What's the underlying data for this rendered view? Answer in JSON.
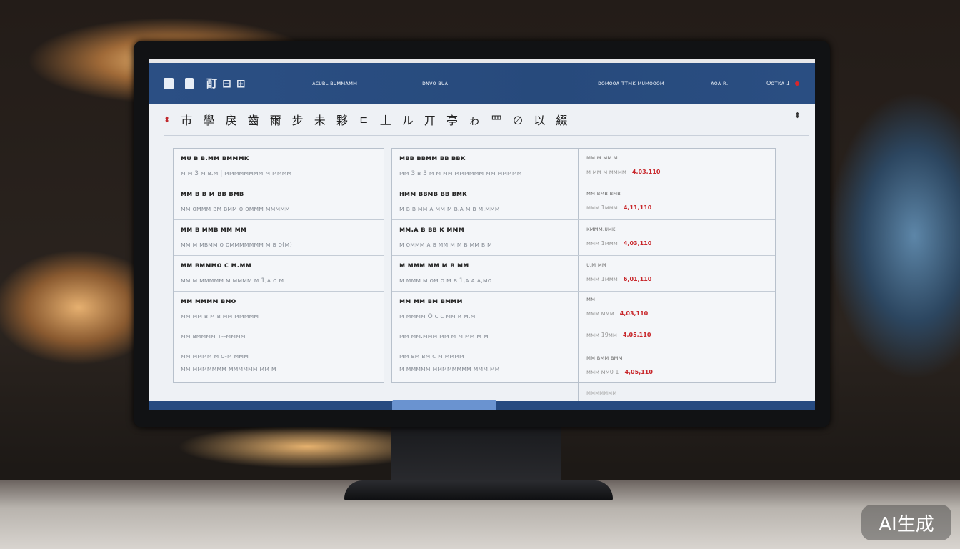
{
  "header": {
    "logo": "酊 ⊟ ⊞",
    "nav": [
      "ᴀᴄᴜʙʟ ʙᴜᴍᴍᴀᴍᴍ",
      "ᴅɴᴠᴏ ʙᴜᴀ",
      "ᴅᴏᴍᴏᴏᴀ ᴛᴛᴍᴋ ᴍᴜᴍᴏᴏᴏᴍ",
      "ᴀᴏᴀ ʀ.",
      "Oᴏᴛᴋᴀ 1"
    ],
    "accent": "#2b4f84"
  },
  "title": "巿 學 戾 齒 爾 步 未 夥 ㄷ 丄 ル 丌 亭 ゎ 罒 ∅ 以 綴",
  "left_rows": [
    {
      "title": "ᴍᴜ ʙ ʙ.ᴍᴍ ʙᴍᴍᴍᴋ",
      "detail": "ᴍ ᴍ 3 ᴍ ʙ.ᴍ | ᴍᴍᴍᴍᴍᴍᴍᴍ ᴍ ᴍᴍᴍᴍ"
    },
    {
      "title": "ᴍᴍ ʙ ʙ ᴍ ʙʙ ʙᴍʙ",
      "detail": "ᴍᴍ ᴏᴍᴍᴍ ʙᴍ ʙᴍᴍ ᴏ ᴏᴍᴍᴍ ᴍᴍᴍᴍᴍ"
    },
    {
      "title": "ᴍᴍ ʙ ᴍᴍʙ ᴍᴍ ᴍᴍ",
      "detail": "ᴍᴍ ᴍ ᴍʙᴍᴍ ᴏ ᴏᴍᴍᴍᴍᴍᴍᴍ ᴍ ʙ ᴏ(ᴍ)"
    },
    {
      "title": "ᴍᴍ ʙᴍᴍᴍᴏ ᴄ ᴍ.ᴍᴍ",
      "detail": "ᴍᴍ ᴍ ᴍᴍᴍᴍᴍ ᴍ ᴍᴍᴍᴍ ᴍ 1,ᴀ ᴏ ᴍ"
    },
    {
      "title": "ᴍᴍ ᴍᴍᴍᴍ ʙᴍᴏ",
      "detail": "ᴍᴍ ᴍᴍ ʙ ᴍ ʙ ᴍᴍ ᴍᴍᴍᴍᴍ",
      "extra": [
        "ᴍᴍ ʙᴍᴍᴍᴍ ᴛ--ᴍᴍᴍᴍ",
        "ᴍᴍ ᴍᴍᴍᴍ ᴍ ᴏ-ᴍ ᴍᴍᴍ",
        "ᴍᴍ ᴍᴍᴍᴍᴍᴍᴍ ᴍᴍᴍᴍᴍᴍ ᴍᴍ ᴍ"
      ]
    }
  ],
  "mid_rows": [
    {
      "title": "ᴍʙʙ ʙʙᴍᴍ ʙʙ ʙʙᴋ",
      "detail": "ᴍᴍ 3 ʙ 3 ᴍ ᴍ ᴍᴍ ᴍᴍᴍᴍᴍᴍ ᴍᴍ ᴍᴍᴍᴍᴍ"
    },
    {
      "title": "ʜᴍᴍ ʙʙᴍʙ ʙʙ ʙᴍᴋ",
      "detail": "ᴍ ʙ ʙ ᴍᴍ ᴀ ᴍᴍ ᴍ ʙ.ᴀ ᴍ ʙ ᴍ.ᴍᴍᴍ"
    },
    {
      "title": "ᴍᴍ.ᴀ ʙ ʙʙ ᴋ ᴍᴍᴍ",
      "detail": "ᴍ ᴏᴍᴍᴍ ᴀ ʙ ᴍᴍ ᴍ ᴍ ʙ ᴍᴍ ʙ ᴍ"
    },
    {
      "title": "ᴍ ᴍᴍᴍ ᴍᴍ ᴍ ʙ ᴍᴍ",
      "detail": "ᴍ ᴍᴍᴍ ᴍ ᴏᴍ ᴏ ᴍ ʙ 1,ᴀ ᴀ ᴀ,ᴍᴏ"
    },
    {
      "title": "ᴍᴍ ᴍᴍ ʙᴍ ʙᴍᴍᴍ",
      "detail": "ᴍ ᴍᴍᴍᴍ O ᴄ ᴄ ᴍᴍ ʀ ᴍ.ᴍ",
      "extra": [
        "ᴍᴍ ᴍᴍ.ᴍᴍᴍ ᴍᴍ ᴍ ᴍ ᴍᴍ ᴍ ᴍ",
        "ᴍᴍ ʙᴍ ʙᴍ ᴄ ᴍ ᴍᴍᴍᴍ",
        "ᴍ ᴍᴍᴍᴍᴍ ᴍᴍᴍᴍᴍᴍᴍᴍ ᴍᴍᴍ.ᴍᴍ"
      ]
    }
  ],
  "right_rows": [
    {
      "label": "ᴍᴍ ᴍ ᴍᴍ.ᴍ",
      "code": "ᴍ ᴍᴍ ᴍ ᴍᴍᴍᴍ",
      "value": "4,03,110"
    },
    {
      "label": "ᴍᴍ ʙᴍʙ ʙᴍʙ",
      "code": "ᴍᴍᴍ 1ᴍᴍᴍ",
      "value": "4,11,110"
    },
    {
      "label": "ᴋᴍᴍᴍ.ᴜᴍᴋ",
      "code": "ᴍᴍᴍ 1ᴍᴍᴍ",
      "value": "4,03,110"
    },
    {
      "label": "ᴜ.ᴍ ᴍᴍ",
      "code": "ᴍᴍᴍ 1ᴍᴍᴍ",
      "value": "6,01,110"
    },
    {
      "label": "ᴍᴍ",
      "code": "ᴍᴍᴍ ᴍᴍᴍ",
      "value": "4,03,110"
    },
    {
      "label": "",
      "code": "ᴍᴍᴍ 19ᴍᴍ",
      "value": "4,05,110"
    },
    {
      "label": "ᴍᴍ ʙᴍᴍ ʙᴍᴍ",
      "code": "ᴍᴍᴍ ᴍᴍ0 1",
      "value": "4,05,110"
    }
  ],
  "footer_label": "ᴍᴍᴍᴍᴍᴍᴍ",
  "watermark": "AI生成"
}
